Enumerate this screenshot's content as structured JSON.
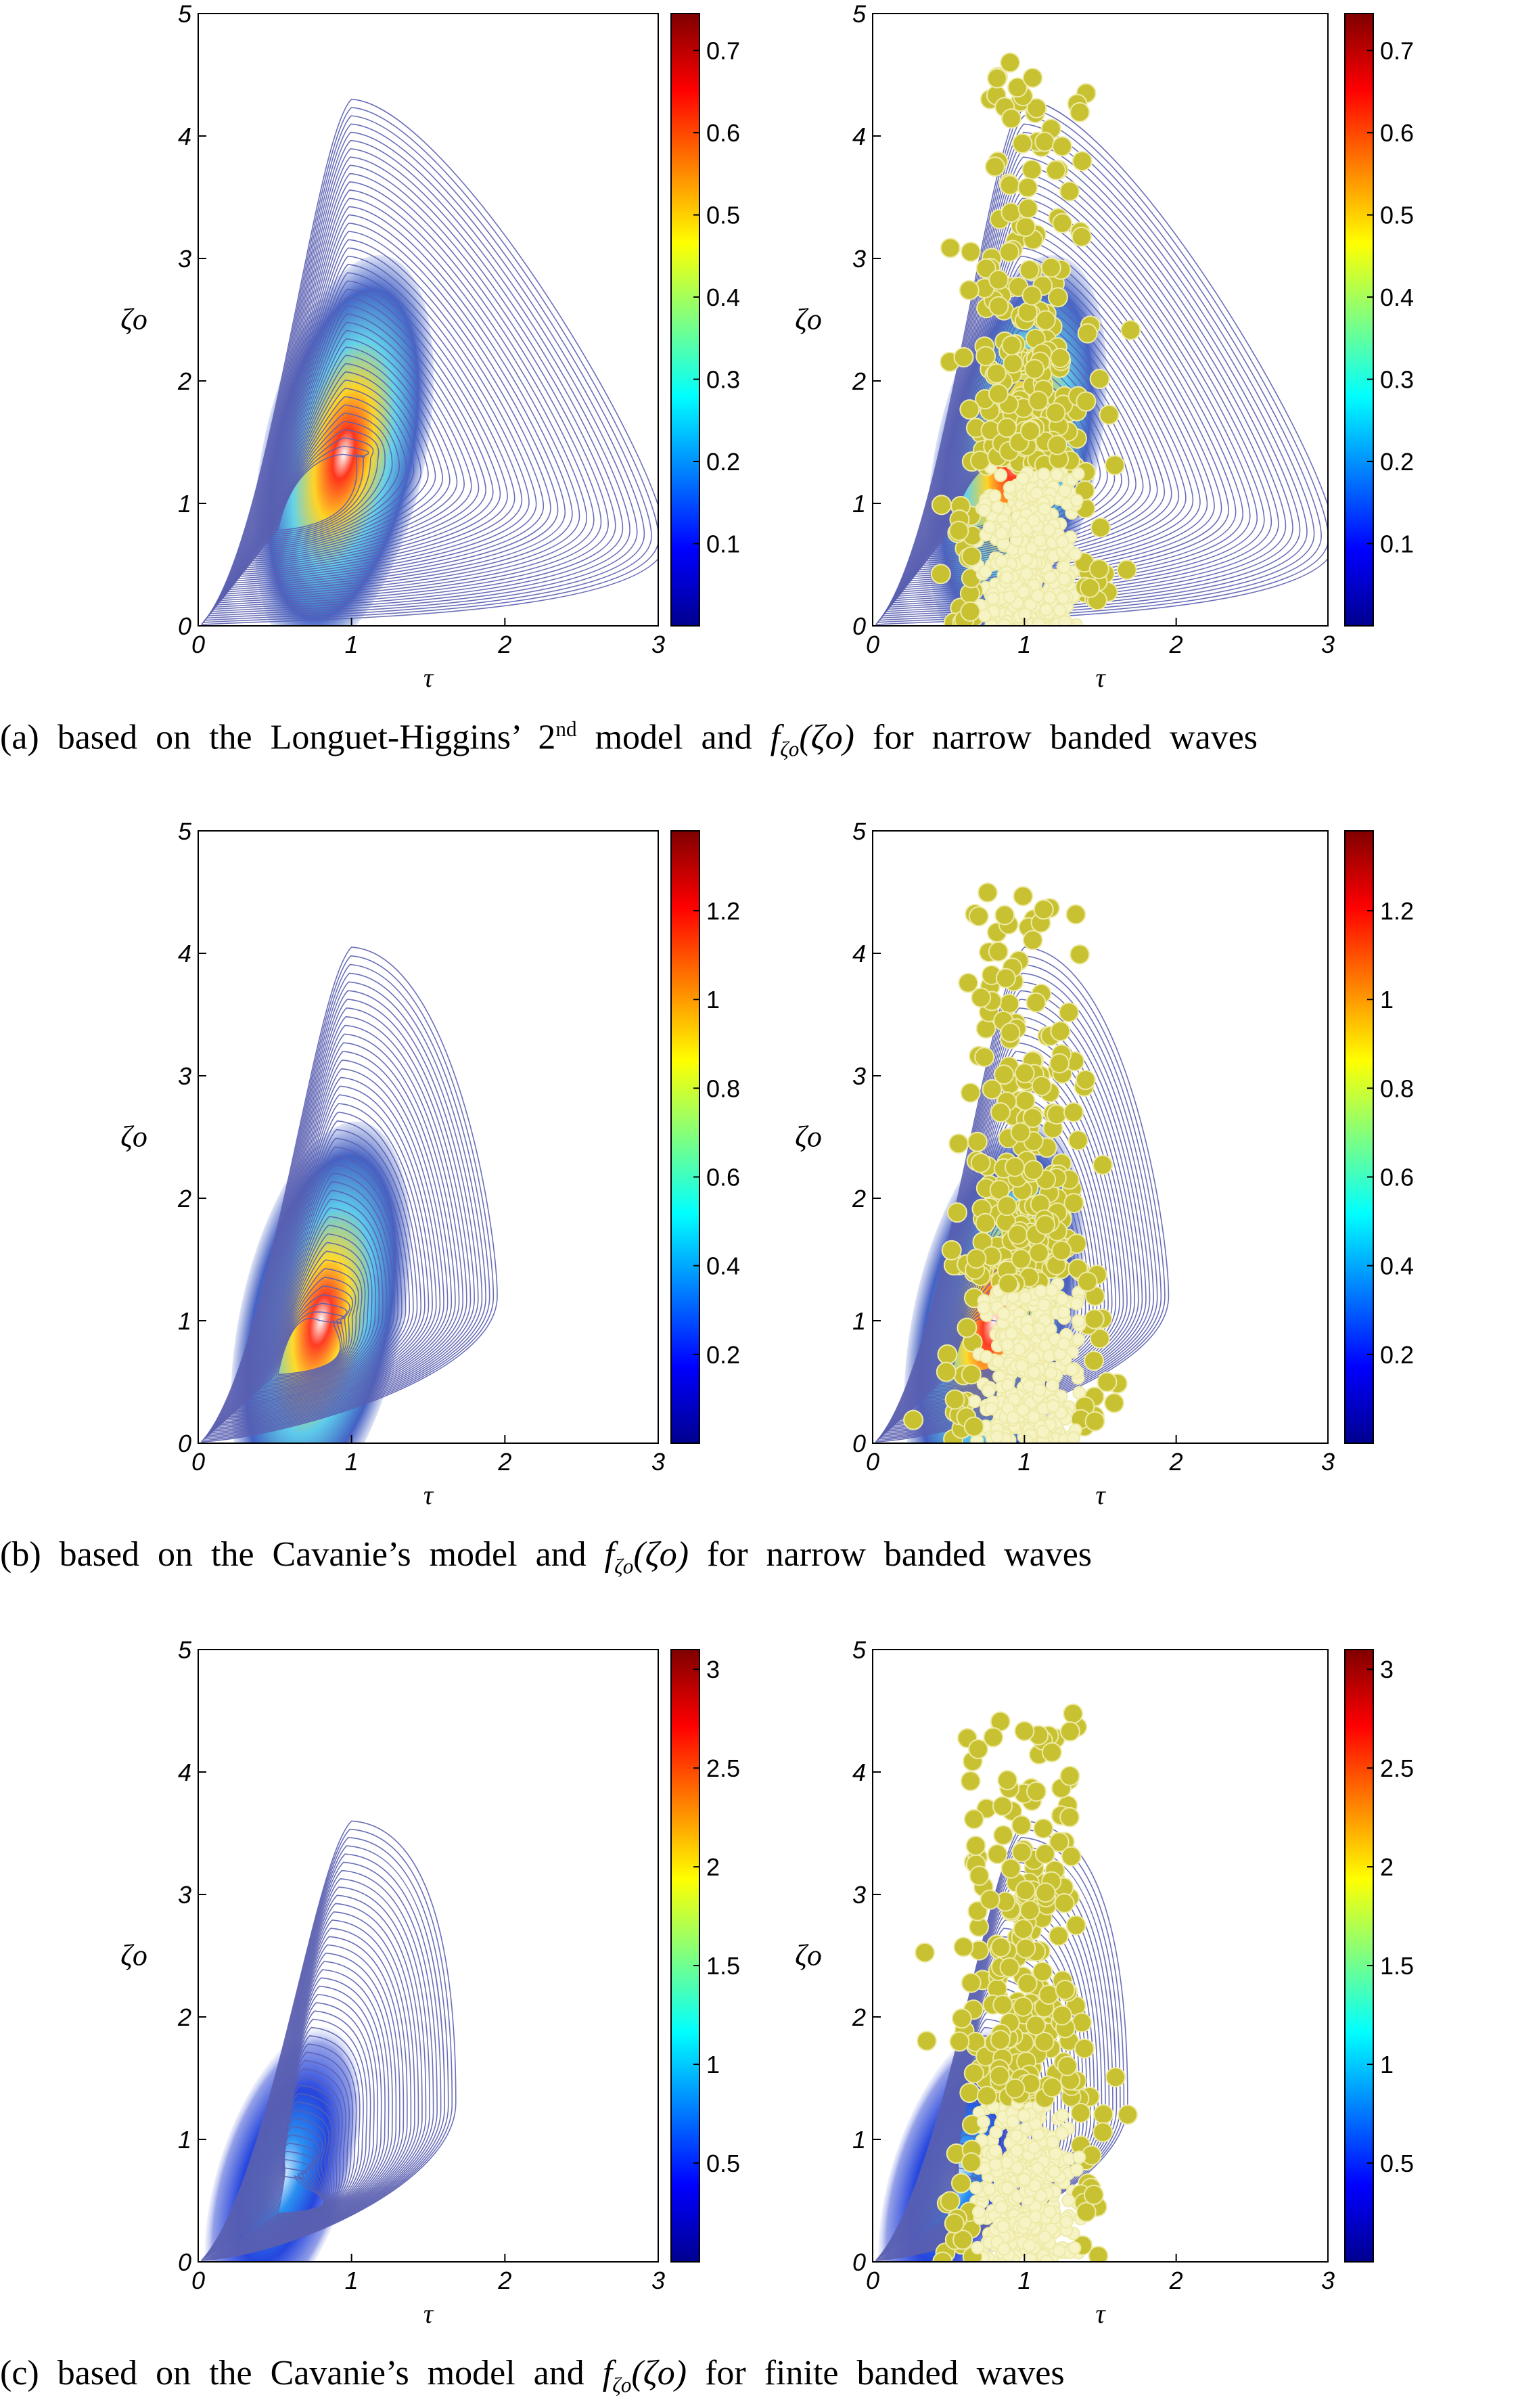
{
  "colors": {
    "contour": "#5a5fb0",
    "scatter_fill": "#c8c232",
    "scatter_edge": "#eeeaa8",
    "colormap": "jet"
  },
  "panels": [
    {
      "caption": {
        "prefix": "(a) based on the Longuet-Higgins’ 2",
        "sup": "nd",
        "middle": " model and ",
        "func": "f",
        "func_sub": "ζo",
        "arg": "(ζo)",
        "suffix": " for narrow banded waves"
      }
    },
    {
      "caption": {
        "prefix": "(b) based on the Cavanie’s model and ",
        "sup": "",
        "middle": "",
        "func": "f",
        "func_sub": "ζo",
        "arg": "(ζo)",
        "suffix": " for narrow banded waves"
      }
    },
    {
      "caption": {
        "prefix": "(c) based on the Cavanie’s model and ",
        "sup": "",
        "middle": "",
        "func": "f",
        "func_sub": "ζo",
        "arg": "(ζo)",
        "suffix": " for finite banded waves"
      }
    }
  ],
  "chart_data": [
    {
      "type": "contour",
      "panel": "a",
      "side": "left",
      "xlabel": "τ",
      "ylabel": "ζo",
      "xlim": [
        0,
        3
      ],
      "ylim": [
        0,
        5
      ],
      "xticks": [
        "0",
        "1",
        "2",
        "3"
      ],
      "yticks": [
        "0",
        "1",
        "2",
        "3",
        "4",
        "5"
      ],
      "colorbar": {
        "ticks": [
          "0.1",
          "0.2",
          "0.3",
          "0.4",
          "0.5",
          "0.6",
          "0.7"
        ],
        "tick_values": [
          0.1,
          0.2,
          0.3,
          0.4,
          0.5,
          0.6,
          0.7
        ],
        "range": [
          0,
          0.745
        ]
      },
      "peak": {
        "x": 0.95,
        "y": 1.4
      },
      "outer_contour_peak": {
        "x": 1.0,
        "y": 4.3
      },
      "scatter": false
    },
    {
      "type": "contour+scatter",
      "panel": "a",
      "side": "right",
      "xlabel": "τ",
      "ylabel": "ζo",
      "xlim": [
        0,
        3
      ],
      "ylim": [
        0,
        5
      ],
      "xticks": [
        "0",
        "1",
        "2",
        "3"
      ],
      "yticks": [
        "0",
        "1",
        "2",
        "3",
        "4",
        "5"
      ],
      "colorbar": {
        "ticks": [
          "0.1",
          "0.2",
          "0.3",
          "0.4",
          "0.5",
          "0.6",
          "0.7"
        ],
        "tick_values": [
          0.1,
          0.2,
          0.3,
          0.4,
          0.5,
          0.6,
          0.7
        ],
        "range": [
          0,
          0.745
        ]
      },
      "peak": {
        "x": 0.95,
        "y": 1.4
      },
      "outer_contour_peak": {
        "x": 1.0,
        "y": 4.3
      },
      "scatter": true
    },
    {
      "type": "contour",
      "panel": "b",
      "side": "left",
      "xlabel": "τ",
      "ylabel": "ζo",
      "xlim": [
        0,
        3
      ],
      "ylim": [
        0,
        5
      ],
      "xticks": [
        "0",
        "1",
        "2",
        "3"
      ],
      "yticks": [
        "0",
        "1",
        "2",
        "3",
        "4",
        "5"
      ],
      "colorbar": {
        "ticks": [
          "0.2",
          "0.4",
          "0.6",
          "0.8",
          "1",
          "1.2"
        ],
        "tick_values": [
          0.2,
          0.4,
          0.6,
          0.8,
          1.0,
          1.2
        ],
        "range": [
          0,
          1.38
        ]
      },
      "peak": {
        "x": 0.8,
        "y": 1.0
      },
      "outer_contour_peak": {
        "x": 1.0,
        "y": 4.05
      },
      "scatter": false
    },
    {
      "type": "contour+scatter",
      "panel": "b",
      "side": "right",
      "xlabel": "τ",
      "ylabel": "ζo",
      "xlim": [
        0,
        3
      ],
      "ylim": [
        0,
        5
      ],
      "xticks": [
        "0",
        "1",
        "2",
        "3"
      ],
      "yticks": [
        "0",
        "1",
        "2",
        "3",
        "4",
        "5"
      ],
      "colorbar": {
        "ticks": [
          "0.2",
          "0.4",
          "0.6",
          "0.8",
          "1",
          "1.2"
        ],
        "tick_values": [
          0.2,
          0.4,
          0.6,
          0.8,
          1.0,
          1.2
        ],
        "range": [
          0,
          1.38
        ]
      },
      "peak": {
        "x": 0.8,
        "y": 1.0
      },
      "outer_contour_peak": {
        "x": 1.0,
        "y": 4.05
      },
      "scatter": true
    },
    {
      "type": "contour",
      "panel": "c",
      "side": "left",
      "xlabel": "τ",
      "ylabel": "ζo",
      "xlim": [
        0,
        3
      ],
      "ylim": [
        0,
        5
      ],
      "xticks": [
        "0",
        "1",
        "2",
        "3"
      ],
      "yticks": [
        "0",
        "1",
        "2",
        "3",
        "4",
        "5"
      ],
      "colorbar": {
        "ticks": [
          "0.5",
          "1",
          "1.5",
          "2",
          "2.5",
          "3"
        ],
        "tick_values": [
          0.5,
          1.0,
          1.5,
          2.0,
          2.5,
          3.0
        ],
        "range": [
          0,
          3.1
        ]
      },
      "peak": {
        "x": 0.55,
        "y": 0.7
      },
      "outer_contour_peak": {
        "x": 1.0,
        "y": 3.6
      },
      "scatter": false
    },
    {
      "type": "contour+scatter",
      "panel": "c",
      "side": "right",
      "xlabel": "τ",
      "ylabel": "ζo",
      "xlim": [
        0,
        3
      ],
      "ylim": [
        0,
        5
      ],
      "xticks": [
        "0",
        "1",
        "2",
        "3"
      ],
      "yticks": [
        "0",
        "1",
        "2",
        "3",
        "4",
        "5"
      ],
      "colorbar": {
        "ticks": [
          "0.5",
          "1",
          "1.5",
          "2",
          "2.5",
          "3"
        ],
        "tick_values": [
          0.5,
          1.0,
          1.5,
          2.0,
          2.5,
          3.0
        ],
        "range": [
          0,
          3.1
        ]
      },
      "peak": {
        "x": 0.55,
        "y": 0.7
      },
      "outer_contour_peak": {
        "x": 1.0,
        "y": 3.6
      },
      "scatter": true
    }
  ]
}
